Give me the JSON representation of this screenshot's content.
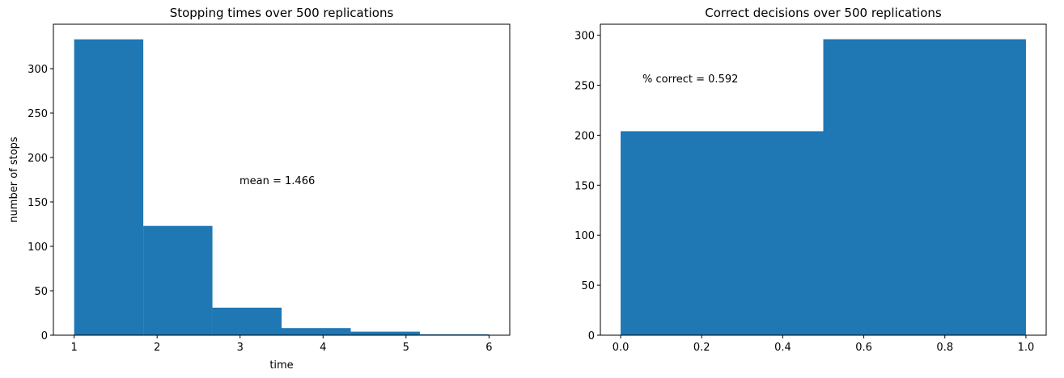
{
  "chart_data": [
    {
      "type": "histogram",
      "title": "Stopping times over 500 replications",
      "xlabel": "time",
      "ylabel": "number of stops",
      "bins": [
        1,
        1.8333333333333333,
        2.6666666666666665,
        3.5,
        4.333333333333333,
        5.166666666666667,
        6
      ],
      "values": [
        333,
        123,
        31,
        8,
        4,
        1
      ],
      "color": "#1f77b4",
      "xlim": [
        0.75,
        6.25
      ],
      "ylim": [
        0,
        350
      ],
      "xticks": [
        1,
        2,
        3,
        4,
        5,
        6
      ],
      "yticks": [
        0,
        50,
        100,
        150,
        200,
        250,
        300
      ],
      "annotation": "mean = 1.466"
    },
    {
      "type": "histogram",
      "title": "Correct decisions over 500 replications",
      "bins": [
        0,
        0.5,
        1
      ],
      "values": [
        204,
        296
      ],
      "color": "#1f77b4",
      "xlim": [
        -0.05,
        1.05
      ],
      "ylim": [
        0,
        311
      ],
      "xticks": [
        {
          "value": 0,
          "label": "0.0"
        },
        0.2,
        0.4,
        0.6,
        0.8,
        {
          "value": 1,
          "label": "1.0"
        }
      ],
      "yticks": [
        0,
        50,
        100,
        150,
        200,
        250,
        300
      ],
      "annotation": "% correct = 0.592"
    }
  ]
}
